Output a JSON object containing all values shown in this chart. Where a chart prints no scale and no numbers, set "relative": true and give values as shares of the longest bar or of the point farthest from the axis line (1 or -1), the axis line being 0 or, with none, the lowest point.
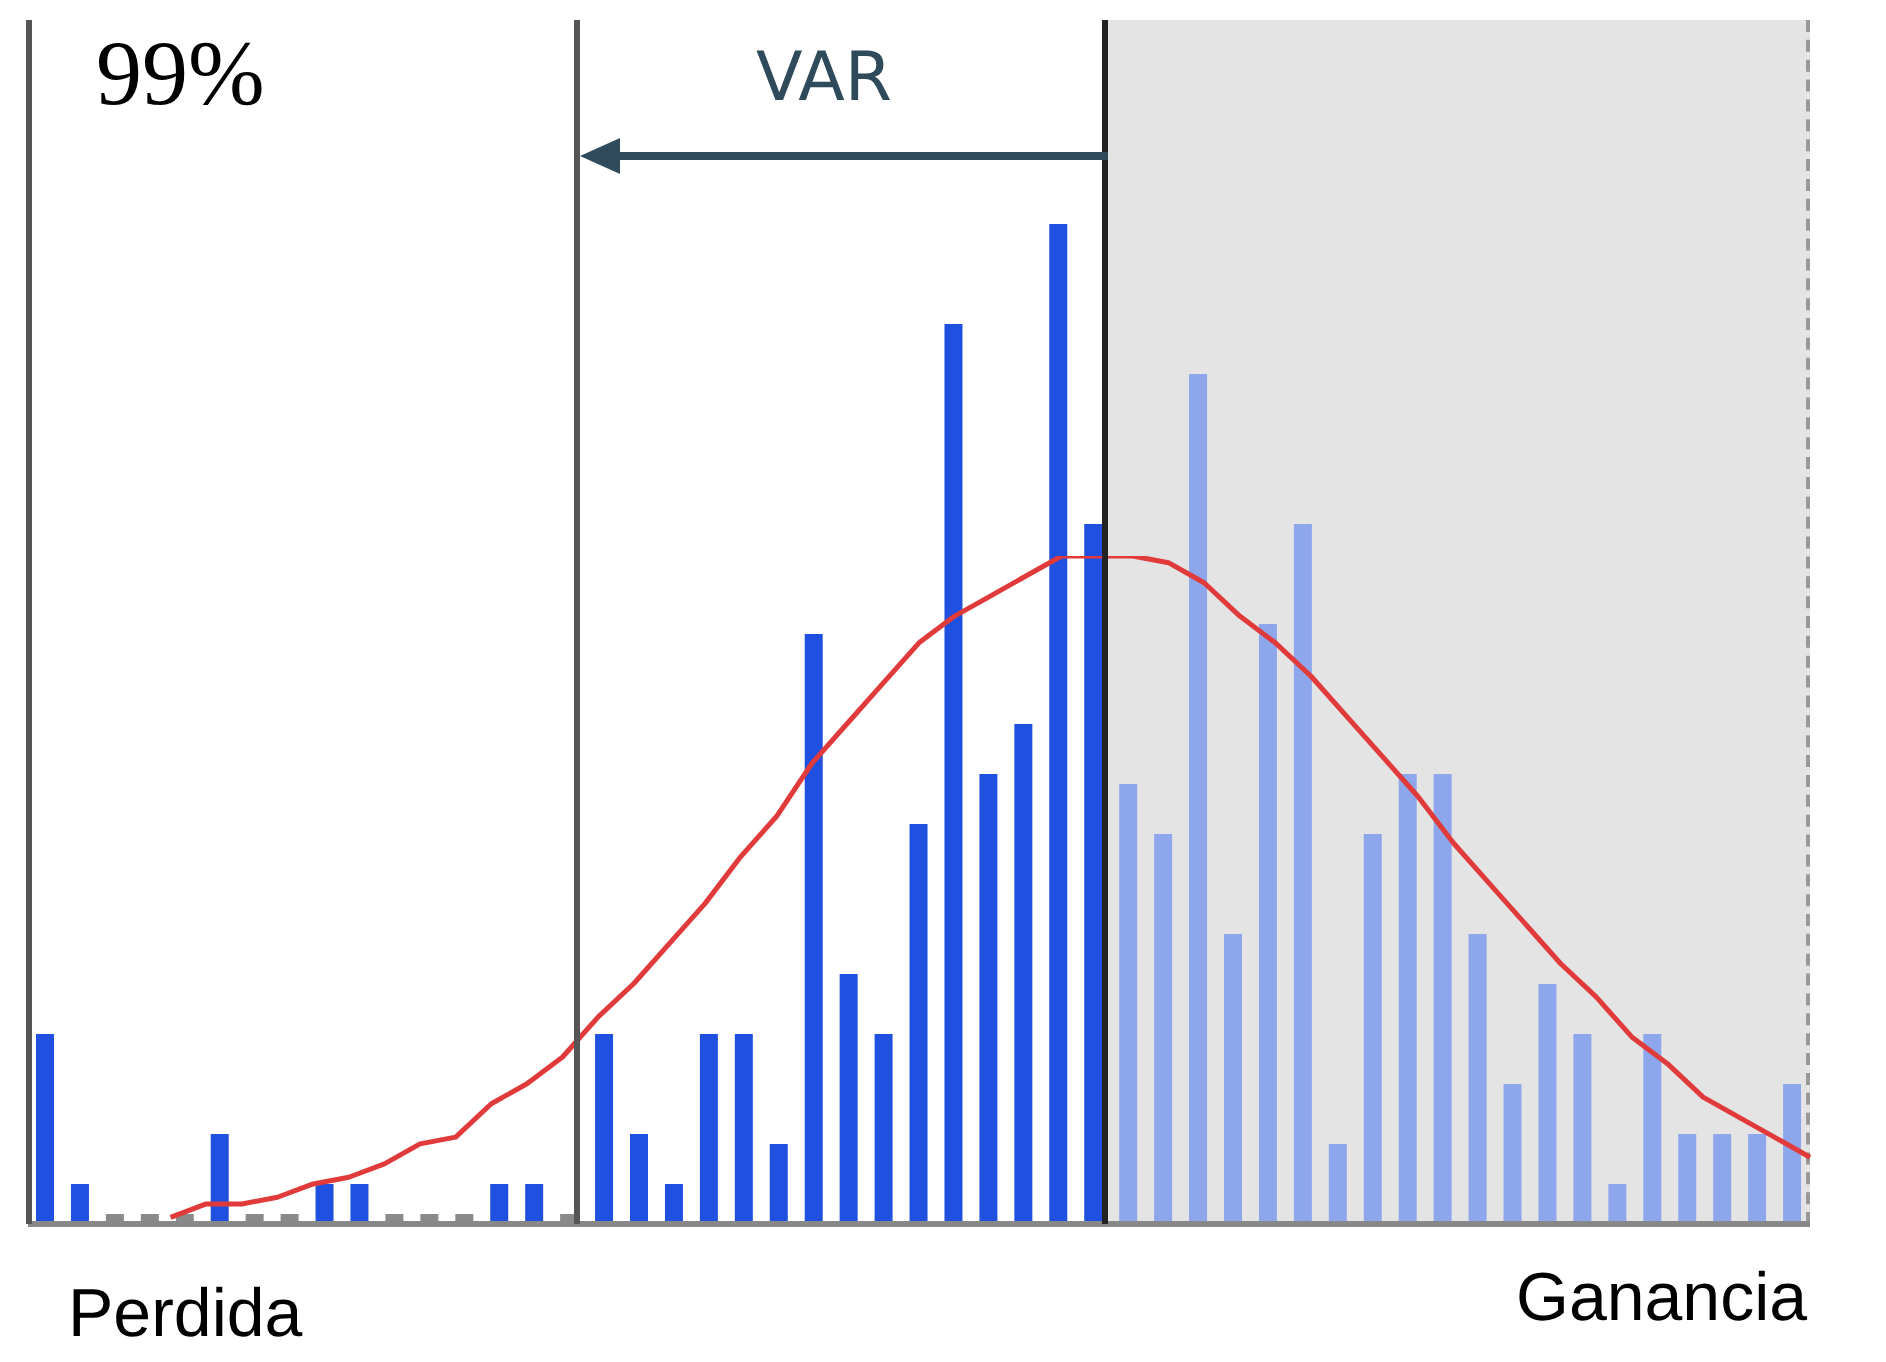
{
  "chart_data": [
    {
      "type": "bar",
      "relative": true,
      "grid": false,
      "legend": false,
      "categories": [
        null,
        null,
        null,
        null,
        null,
        null,
        null,
        null,
        null,
        null,
        null,
        null,
        null,
        null,
        null,
        null,
        null,
        null,
        null,
        null,
        null,
        null,
        null,
        null,
        null,
        null,
        null,
        null,
        null,
        null,
        null,
        null,
        null,
        null,
        null,
        null,
        null,
        null,
        null,
        null,
        null,
        null,
        null,
        null,
        null,
        null,
        null,
        null,
        null,
        null,
        null
      ],
      "series": [
        {
          "colors": [
            "#2050e0",
            "#2050e0",
            "#8a8a8a",
            "#8a8a8a",
            "#8a8a8a",
            "#2050e0",
            "#8a8a8a",
            "#8a8a8a",
            "#2050e0",
            "#2050e0",
            "#8a8a8a",
            "#8a8a8a",
            "#8a8a8a",
            "#2050e0",
            "#2050e0",
            "#8a8a8a",
            "#2050e0",
            "#2050e0",
            "#2050e0",
            "#2050e0",
            "#2050e0",
            "#2050e0",
            "#2050e0",
            "#2050e0",
            "#2050e0",
            "#2050e0",
            "#2050e0",
            "#2050e0",
            "#2050e0",
            "#2050e0",
            "#2050e0",
            "#8ea6ec",
            "#8ea6ec",
            "#8ea6ec",
            "#8ea6ec",
            "#8ea6ec",
            "#8ea6ec",
            "#8ea6ec",
            "#8ea6ec",
            "#8ea6ec",
            "#8ea6ec",
            "#8ea6ec",
            "#8ea6ec",
            "#8ea6ec",
            "#8ea6ec",
            "#8ea6ec",
            "#8ea6ec",
            "#8ea6ec",
            "#8ea6ec",
            "#8ea6ec",
            "#8ea6ec"
          ],
          "values": [
            0.19,
            0.04,
            0.01,
            0.01,
            0.01,
            0.09,
            0.01,
            0.01,
            0.04,
            0.04,
            0.01,
            0.01,
            0.01,
            0.04,
            0.04,
            0.01,
            0.19,
            0.09,
            0.04,
            0.19,
            0.19,
            0.08,
            0.59,
            0.25,
            0.19,
            0.4,
            0.9,
            0.45,
            0.5,
            1,
            0.7,
            0.44,
            0.39,
            0.85,
            0.29,
            0.6,
            0.7,
            0.08,
            0.39,
            0.45,
            0.45,
            0.29,
            0.14,
            0.24,
            0.19,
            0.04,
            0.19,
            0.09,
            0.09,
            0.09,
            0.14
          ]
        }
      ],
      "annotations": [
        "99%",
        "VAR",
        "Perdida",
        "Ganancia"
      ]
    },
    {
      "type": "line",
      "relative": true,
      "grid": false,
      "legend": false,
      "categories": [
        null,
        null,
        null,
        null,
        null,
        null,
        null,
        null,
        null,
        null,
        null,
        null,
        null,
        null,
        null,
        null,
        null,
        null,
        null,
        null,
        null,
        null,
        null,
        null,
        null,
        null,
        null,
        null,
        null,
        null,
        null,
        null,
        null,
        null,
        null,
        null,
        null,
        null,
        null,
        null,
        null,
        null,
        null,
        null,
        null,
        null,
        null,
        null,
        null,
        null,
        null
      ],
      "series": [
        {
          "color": "#e03a3a",
          "values": [
            null,
            null,
            null,
            null,
            0.01,
            0.03,
            0.03,
            0.04,
            0.06,
            0.07,
            0.09,
            0.12,
            0.13,
            0.18,
            0.21,
            0.25,
            0.31,
            0.36,
            0.42,
            0.48,
            0.55,
            0.61,
            0.69,
            0.75,
            0.81,
            0.87,
            0.91,
            0.94,
            0.97,
            1,
            1,
            1,
            0.99,
            0.96,
            0.91,
            0.87,
            0.82,
            0.76,
            0.7,
            0.64,
            0.57,
            0.51,
            0.45,
            0.39,
            0.34,
            0.28,
            0.24,
            0.19,
            0.16,
            0.13,
            0.1
          ]
        }
      ]
    }
  ]
}
